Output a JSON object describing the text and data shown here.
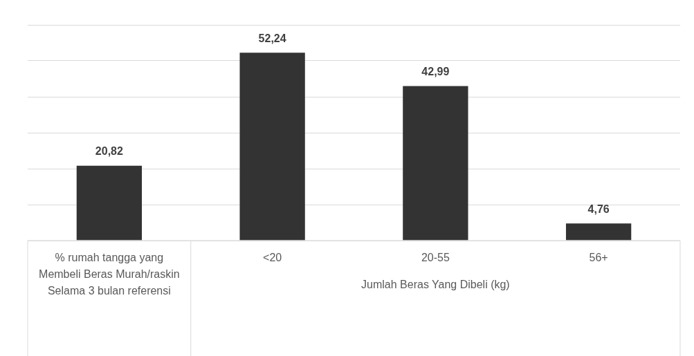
{
  "chart_data": {
    "type": "bar",
    "xlabel": "Jumlah Beras Yang Dibeli (kg)",
    "categories": [
      "% rumah tangga yang Membeli Beras Murah/raskin Selama 3 bulan referensi",
      "<20",
      "20-55",
      "56+"
    ],
    "values": [
      20.82,
      52.24,
      42.99,
      4.76
    ],
    "value_labels": [
      "20,82",
      "52,24",
      "42,99",
      "4,76"
    ],
    "color": "#333333",
    "ylim": [
      0,
      60
    ],
    "yticks": [
      {
        "value": 0,
        "label": null
      },
      {
        "value": 10,
        "label": null
      },
      {
        "value": 20,
        "label": null
      },
      {
        "value": 30,
        "label": null
      },
      {
        "value": 40,
        "label": null
      },
      {
        "value": 50,
        "label": null
      },
      {
        "value": 60,
        "label": null
      }
    ],
    "tick_labels": "x",
    "grid": "y",
    "legend": false
  }
}
